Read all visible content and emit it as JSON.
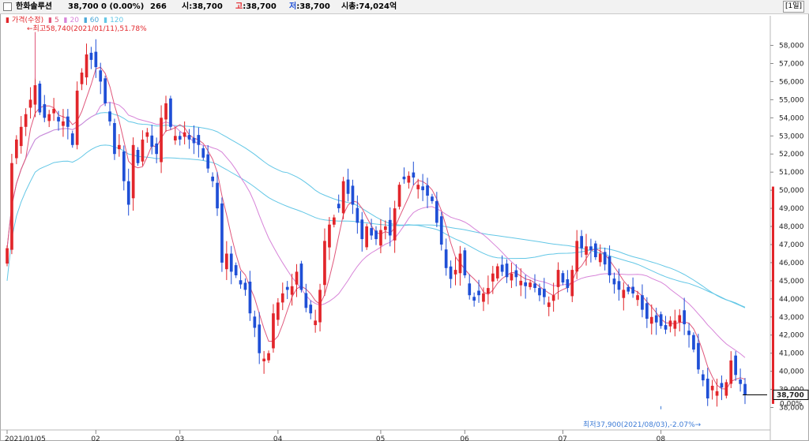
{
  "header": {
    "stock_name": "한화솔루션",
    "price": "38,700",
    "change": "0 (0.00%)",
    "volume": "266",
    "open_label": "시",
    "open_value": ":38,700",
    "high_label": "고",
    "high_value": ":38,700",
    "low_label": "저",
    "low_value": ":38,700",
    "marketcap": "시총:74,024억",
    "interval": "[1일]"
  },
  "legend": {
    "price_label": "가격(수정)",
    "ma_labels": [
      "5",
      "20",
      "60",
      "120"
    ]
  },
  "annotations": {
    "high": "최고58,740(2021/01/11),51.78%",
    "low": "최저37,900(2021/08/03),-2.07%"
  },
  "colors": {
    "up": "#e2262b",
    "down": "#1f4fd6",
    "ma5": "#e0577b",
    "ma20": "#d783d8",
    "ma60": "#63c7e6",
    "ma120": "#63c7e6",
    "last_box": "#000000"
  },
  "chart_data": {
    "type": "candlestick",
    "ylim": [
      37500,
      59200
    ],
    "y_ticks": [
      38000,
      39000,
      40000,
      41000,
      42000,
      43000,
      44000,
      45000,
      46000,
      47000,
      48000,
      49000,
      50000,
      51000,
      52000,
      53000,
      54000,
      55000,
      56000,
      57000,
      58000
    ],
    "y_tick_labels": [
      "38,000",
      "39,000",
      "40,000",
      "41,000",
      "42,000",
      "43,000",
      "44,000",
      "45,000",
      "46,000",
      "47,000",
      "48,000",
      "49,000",
      "50,000",
      "51,000",
      "52,000",
      "53,000",
      "54,000",
      "55,000",
      "56,000",
      "57,000",
      "58,000"
    ],
    "x_ticks": [
      {
        "index": 0,
        "label": "2021/01/05"
      },
      {
        "index": 19,
        "label": "02"
      },
      {
        "index": 37,
        "label": "03"
      },
      {
        "index": 58,
        "label": "04"
      },
      {
        "index": 80,
        "label": "05"
      },
      {
        "index": 98,
        "label": "06"
      },
      {
        "index": 119,
        "label": "07"
      },
      {
        "index": 140,
        "label": "08"
      }
    ],
    "last_price_label": "38,700",
    "volume_axis_label": "0.00%",
    "close": [
      46800,
      51500,
      52800,
      53500,
      54200,
      55000,
      55800,
      54300,
      54000,
      54200,
      54500,
      53800,
      53800,
      53500,
      52500,
      55500,
      56500,
      57500,
      57200,
      56800,
      56000,
      54800,
      53800,
      52000,
      52500,
      50500,
      49200,
      52500,
      51500,
      52800,
      53200,
      52400,
      52000,
      54000,
      54800,
      53500,
      53000,
      52800,
      53200,
      52800,
      52600,
      52500,
      51800,
      51200,
      50500,
      49000,
      46000,
      46500,
      45500,
      45300,
      44800,
      44500,
      43200,
      42400,
      41000,
      40700,
      41000,
      43200,
      43800,
      44300,
      44500,
      44700,
      45500,
      44500,
      43500,
      43200,
      42800,
      44500,
      47200,
      48100,
      48500,
      49000,
      50500,
      49800,
      49200,
      48200,
      47300,
      48000,
      47500,
      47300,
      47800,
      48000,
      47500,
      49000,
      50300,
      50600,
      50800,
      50700,
      50300,
      50000,
      49700,
      49400,
      48200,
      47000,
      45700,
      45100,
      45600,
      46500,
      45300,
      44200,
      43900,
      44200,
      44300,
      44600,
      45400,
      45800,
      45500,
      45200,
      45400,
      45200,
      45000,
      44700,
      44900,
      44600,
      44200,
      44100,
      43800,
      44200,
      45600,
      44900,
      44600,
      45600,
      47200,
      46800,
      46900,
      46700,
      46300,
      46500,
      45900,
      45300,
      44800,
      44500,
      44500,
      44400,
      44300,
      44200,
      43400,
      42900,
      43000,
      42700,
      42500,
      42300,
      42800,
      42800,
      43100,
      42600,
      42000,
      41200,
      40100,
      39500,
      38500,
      39200,
      38900,
      39100,
      39400,
      40600,
      39800,
      39300,
      38700
    ],
    "annotation_points": [
      {
        "label": "high",
        "index": 6,
        "value": 58740
      },
      {
        "label": "low",
        "index": 140,
        "value": 37900
      }
    ]
  }
}
